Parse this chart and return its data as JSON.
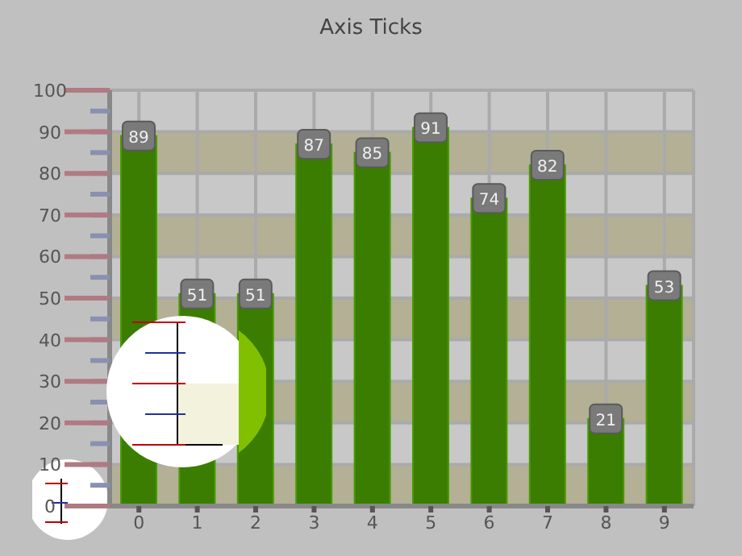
{
  "chart_data": {
    "type": "bar",
    "title": "Axis Ticks",
    "categories": [
      "0",
      "1",
      "2",
      "3",
      "4",
      "5",
      "6",
      "7",
      "8",
      "9"
    ],
    "values": [
      89,
      51,
      51,
      87,
      85,
      91,
      74,
      82,
      21,
      53
    ],
    "color": "#3a7d00",
    "data_labels": true,
    "ylim": [
      0,
      100
    ],
    "yticks": [
      0,
      {
        "value": 5,
        "label": null
      },
      10,
      {
        "value": 15,
        "label": null
      },
      20,
      {
        "value": 25,
        "label": null
      },
      30,
      {
        "value": 35,
        "label": null
      },
      40,
      {
        "value": 45,
        "label": null
      },
      50,
      {
        "value": 55,
        "label": null
      },
      60,
      {
        "value": 65,
        "label": null
      },
      70,
      {
        "value": 75,
        "label": null
      },
      80,
      {
        "value": 85,
        "label": null
      },
      90,
      {
        "value": 95,
        "label": null
      },
      100
    ],
    "grid": true
  }
}
